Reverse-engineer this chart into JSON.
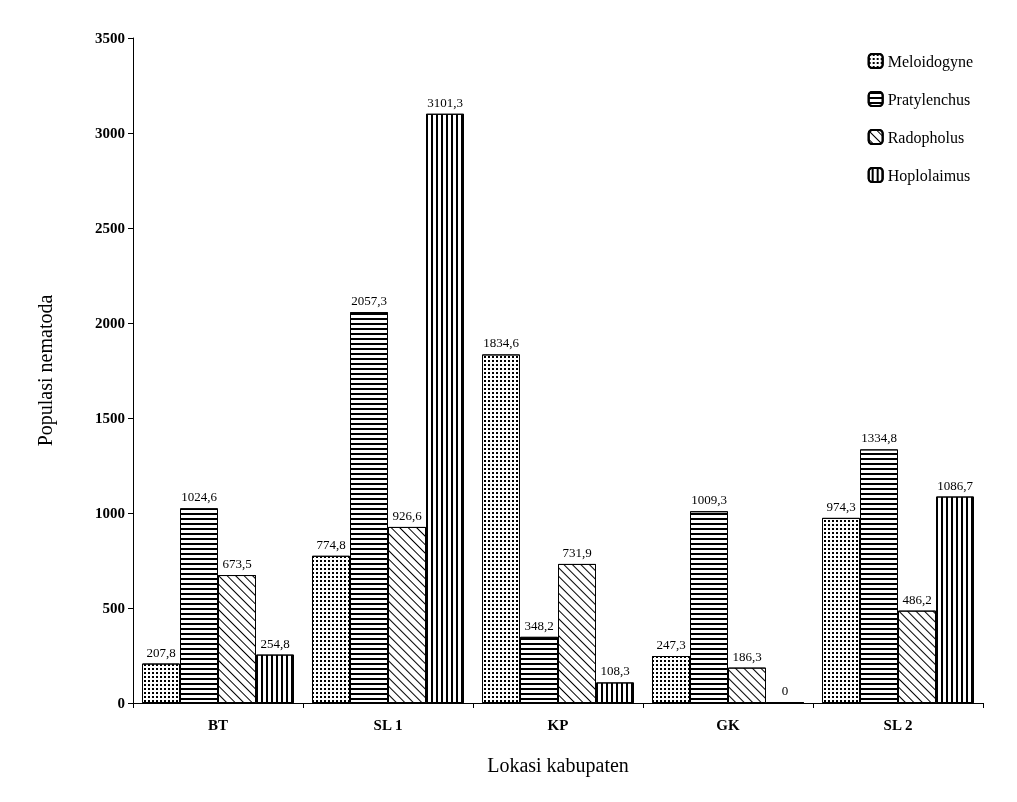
{
  "chart_data": {
    "type": "bar",
    "xlabel": "Lokasi kabupaten",
    "ylabel": "Populasi nematoda",
    "categories": [
      "BT",
      "SL 1",
      "KP",
      "GK",
      "SL 2"
    ],
    "series": [
      {
        "name": "Meloidogyne",
        "color": "#000000",
        "values": [
          207.8,
          774.8,
          1834.6,
          247.3,
          974.3
        ],
        "value_labels": [
          "207,8",
          "774,8",
          "1834,6",
          "247,3",
          "974,3"
        ]
      },
      {
        "name": "Pratylenchus",
        "color": "#000000",
        "values": [
          1024.6,
          2057.3,
          348.2,
          1009.3,
          1334.8
        ],
        "value_labels": [
          "1024,6",
          "2057,3",
          "348,2",
          "1009,3",
          "1334,8"
        ]
      },
      {
        "name": "Radopholus",
        "color": "#000000",
        "values": [
          673.5,
          926.6,
          731.9,
          186.3,
          486.2
        ],
        "value_labels": [
          "673,5",
          "926,6",
          "731,9",
          "186,3",
          "486,2"
        ]
      },
      {
        "name": "Hoplolaimus",
        "color": "#000000",
        "values": [
          254.8,
          3101.3,
          108.3,
          0,
          1086.7
        ],
        "value_labels": [
          "254,8",
          "3101,3",
          "108,3",
          "0",
          "1086,7"
        ]
      }
    ],
    "ylim": [
      0,
      3500
    ],
    "yticks": [
      0,
      500,
      1000,
      1500,
      2000,
      2500,
      3000,
      3500
    ],
    "grid": false,
    "legend": "top right"
  }
}
